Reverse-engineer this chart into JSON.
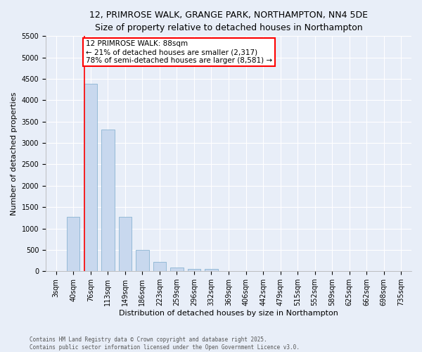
{
  "title1": "12, PRIMROSE WALK, GRANGE PARK, NORTHAMPTON, NN4 5DE",
  "title2": "Size of property relative to detached houses in Northampton",
  "xlabel": "Distribution of detached houses by size in Northampton",
  "ylabel": "Number of detached properties",
  "categories": [
    "3sqm",
    "40sqm",
    "76sqm",
    "113sqm",
    "149sqm",
    "186sqm",
    "223sqm",
    "259sqm",
    "296sqm",
    "332sqm",
    "369sqm",
    "406sqm",
    "442sqm",
    "479sqm",
    "515sqm",
    "552sqm",
    "589sqm",
    "625sqm",
    "662sqm",
    "698sqm",
    "735sqm"
  ],
  "values": [
    0,
    1270,
    4380,
    3310,
    1280,
    500,
    220,
    90,
    50,
    50,
    0,
    0,
    0,
    0,
    0,
    0,
    0,
    0,
    0,
    0,
    0
  ],
  "bar_color": "#c8d8ee",
  "bar_edge_color": "#7aaacc",
  "vline_x_index": 2,
  "vline_color": "red",
  "annotation_text": "12 PRIMROSE WALK: 88sqm\n← 21% of detached houses are smaller (2,317)\n78% of semi-detached houses are larger (8,581) →",
  "annotation_box_color": "white",
  "annotation_box_edge": "red",
  "ylim": [
    0,
    5500
  ],
  "yticks": [
    0,
    500,
    1000,
    1500,
    2000,
    2500,
    3000,
    3500,
    4000,
    4500,
    5000,
    5500
  ],
  "footer1": "Contains HM Land Registry data © Crown copyright and database right 2025.",
  "footer2": "Contains public sector information licensed under the Open Government Licence v3.0.",
  "bg_color": "#e8eef8",
  "plot_bg_color": "#e8eef8",
  "grid_color": "white",
  "title1_fontsize": 9,
  "title2_fontsize": 8.5,
  "xlabel_fontsize": 8,
  "ylabel_fontsize": 8,
  "tick_fontsize": 7,
  "annot_fontsize": 7.5,
  "footer_fontsize": 5.5
}
